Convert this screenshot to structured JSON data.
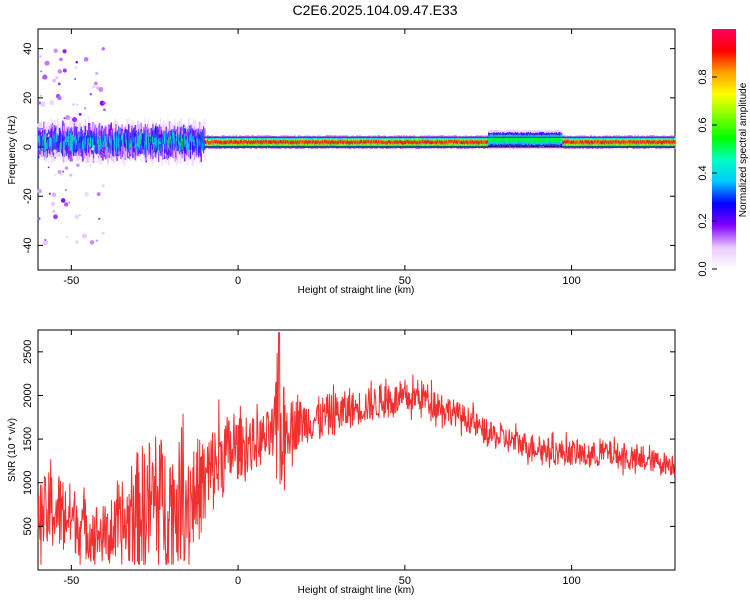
{
  "title": "C2E6.2025.104.09.47.E33",
  "colors": {
    "snr_line": "#f03030",
    "colormap_stops": [
      "#ffffff",
      "#e8c8ff",
      "#8000ff",
      "#0000ff",
      "#00c8ff",
      "#00ffc0",
      "#00ff00",
      "#80ff00",
      "#ffff00",
      "#ffa000",
      "#ff0000",
      "#ff0060"
    ]
  },
  "chart_data": [
    {
      "type": "heatmap",
      "title": "C2E6.2025.104.09.47.E33",
      "xlabel": "Height of straight line (km)",
      "ylabel": "Frequency (Hz)",
      "xlim": [
        -60,
        131
      ],
      "ylim": [
        -50,
        48
      ],
      "xticks": [
        -50,
        0,
        50,
        100
      ],
      "yticks": [
        -40,
        -20,
        0,
        20,
        40
      ],
      "grid": false,
      "colorbar": {
        "label": "Normalized spectral amplitude",
        "range": [
          0.0,
          1.0
        ],
        "ticks": [
          "0.0",
          "0.2",
          "0.4",
          "0.6",
          "0.8"
        ]
      },
      "bands": [
        {
          "x_range": [
            -60,
            -10
          ],
          "center_freq_hz": 2,
          "half_width_hz": 5,
          "amplitude": 0.45,
          "note": "scattered"
        },
        {
          "x_range": [
            -10,
            131
          ],
          "center_freq_hz": 2,
          "half_width_hz": 2,
          "amplitude": 0.95,
          "note": "continuous"
        },
        {
          "x_range": [
            75,
            97
          ],
          "center_freq_hz": 3,
          "half_width_hz": 3,
          "amplitude": 0.55,
          "note": "broadened"
        }
      ]
    },
    {
      "type": "line",
      "xlabel": "Height of straight line (km)",
      "ylabel": "SNR (10 * v/v)",
      "xlim": [
        -60,
        131
      ],
      "ylim": [
        0,
        2750
      ],
      "xticks": [
        -50,
        0,
        50,
        100
      ],
      "yticks": [
        500,
        1000,
        1500,
        2000,
        2500
      ],
      "grid": false,
      "series": [
        {
          "x": [
            -60,
            -55,
            -50,
            -45,
            -40,
            -35,
            -30,
            -25,
            -20,
            -15,
            -10,
            -5,
            0,
            5,
            10,
            12,
            15,
            20,
            25,
            30,
            35,
            40,
            45,
            50,
            55,
            60,
            65,
            70,
            75,
            80,
            85,
            90,
            95,
            100,
            105,
            110,
            115,
            120,
            125,
            131
          ],
          "y": [
            600,
            700,
            600,
            450,
            400,
            450,
            700,
            800,
            750,
            800,
            1000,
            1300,
            1400,
            1450,
            1550,
            1500,
            1650,
            1700,
            1750,
            1800,
            1850,
            1900,
            1950,
            1950,
            2000,
            1900,
            1800,
            1700,
            1550,
            1500,
            1450,
            1400,
            1350,
            1350,
            1300,
            1350,
            1300,
            1250,
            1250,
            1200
          ],
          "noise": [
            400,
            500,
            400,
            350,
            350,
            400,
            700,
            800,
            700,
            700,
            550,
            500,
            350,
            300,
            300,
            800,
            350,
            250,
            250,
            250,
            200,
            200,
            200,
            180,
            180,
            180,
            150,
            150,
            150,
            150,
            150,
            150,
            150,
            150,
            150,
            150,
            150,
            130,
            130,
            130
          ]
        }
      ]
    }
  ]
}
